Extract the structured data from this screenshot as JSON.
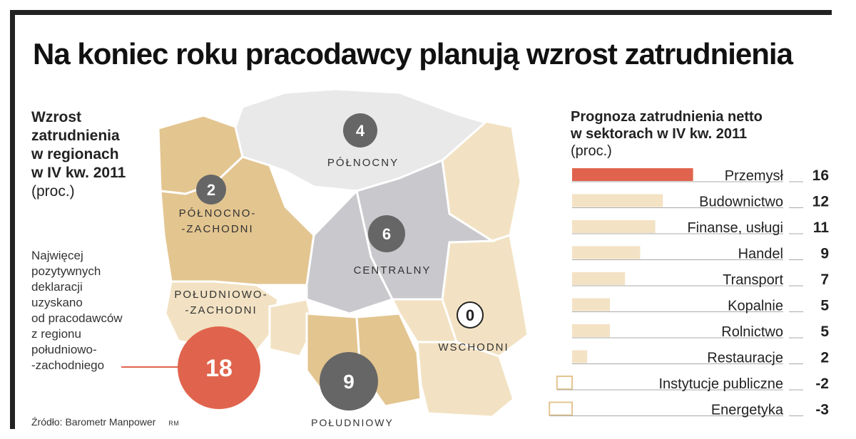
{
  "title": "Na koniec roku pracodawcy planują wzrost zatrudnienia",
  "map_panel": {
    "heading_lines": [
      "Wzrost",
      "zatrudnienia",
      "w regionach",
      "w IV kw. 2011"
    ],
    "unit": "(proc.)",
    "note_lines": [
      "Najwięcej",
      "pozytywnych",
      "deklaracji",
      "uzyskano",
      "od pracodawców",
      "z regionu",
      "południowo-",
      "-zachodniego"
    ]
  },
  "sector_panel": {
    "heading_lines": [
      "Prognoza zatrudnienia netto",
      "w sektorach w IV kw. 2011"
    ],
    "unit": "(proc.)"
  },
  "source": "Źródło: Barometr Manpower",
  "source_mark": "RM",
  "colors": {
    "region_tan": "#e3c590",
    "region_light_tan": "#f2e2c3",
    "region_light_gray": "#e9e9ea",
    "region_gray": "#c9c9cd",
    "badge_dark": "#666666",
    "badge_highlight": "#e0644d",
    "bar_fill": "#f3e2c4",
    "bar_highlight": "#e0644d"
  },
  "chart_data": [
    {
      "type": "map",
      "regions": [
        {
          "name": "PÓŁNOCNY",
          "value": 4
        },
        {
          "name": "PÓŁNOCNO-ZACHODNI",
          "label_lines": [
            "PÓŁNOCNO-",
            "-ZACHODNI"
          ],
          "value": 2
        },
        {
          "name": "CENTRALNY",
          "value": 6
        },
        {
          "name": "POŁUDNIOWO-ZACHODNI",
          "label_lines": [
            "POŁUDNIOWO-",
            "-ZACHODNI"
          ],
          "value": 18,
          "highlight": true
        },
        {
          "name": "POŁUDNIOWY",
          "value": 9
        },
        {
          "name": "WSCHODNI",
          "value": 0
        }
      ]
    },
    {
      "type": "bar",
      "orientation": "horizontal",
      "categories": [
        "Przemysł",
        "Budownictwo",
        "Finanse, usługi",
        "Handel",
        "Transport",
        "Kopalnie",
        "Rolnictwo",
        "Restauracje",
        "Instytucje publiczne",
        "Energetyka"
      ],
      "values": [
        16,
        12,
        11,
        9,
        7,
        5,
        5,
        2,
        -2,
        -3
      ],
      "value_labels": [
        "16",
        "12",
        "11",
        "9",
        "7",
        "5",
        "5",
        "2",
        "-2",
        "-3"
      ],
      "highlight_index": 0
    }
  ]
}
